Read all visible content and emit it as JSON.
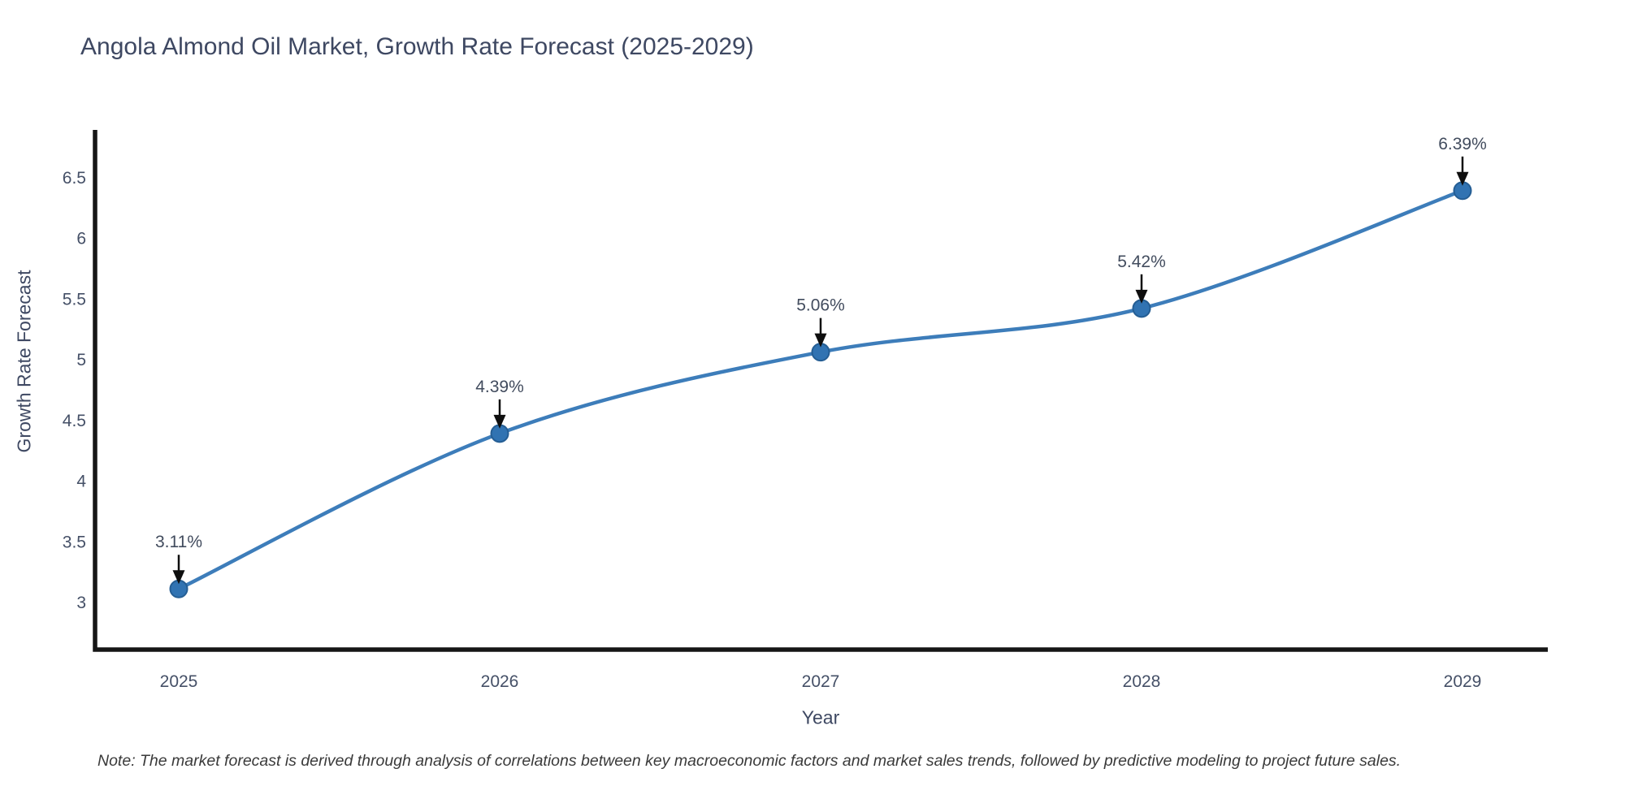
{
  "chart_data": {
    "type": "line",
    "title": "Angola Almond Oil Market, Growth Rate Forecast (2025-2029)",
    "xlabel": "Year",
    "ylabel": "Growth Rate Forecast",
    "categories": [
      "2025",
      "2026",
      "2027",
      "2028",
      "2029"
    ],
    "values": [
      3.11,
      4.39,
      5.06,
      5.42,
      6.39
    ],
    "point_labels": [
      "3.11%",
      "4.39%",
      "5.06%",
      "5.42%",
      "6.39%"
    ],
    "yticks": [
      3,
      3.5,
      4,
      4.5,
      5,
      5.5,
      6,
      6.5
    ],
    "ytick_labels": [
      "3",
      "3.5",
      "4",
      "4.5",
      "5",
      "5.5",
      "6",
      "6.5"
    ],
    "ylim": [
      2.61,
      6.89
    ],
    "grid": false,
    "legend": "none",
    "line_shape": "spline",
    "markers": true,
    "annotations": "value labels with downward arrows above each point",
    "colors": {
      "line": "#3d7dba",
      "marker_fill": "#3173b2",
      "marker_edge": "#255e94",
      "axis": "#161616",
      "arrow": "#0e0e0e",
      "tick_text": "#455067",
      "annotation_text": "#424c5e",
      "title_text": "#3e4862"
    },
    "note": "Note: The market forecast is derived through analysis of correlations between key macroeconomic factors and market sales trends, followed by predictive modeling to project future sales."
  }
}
